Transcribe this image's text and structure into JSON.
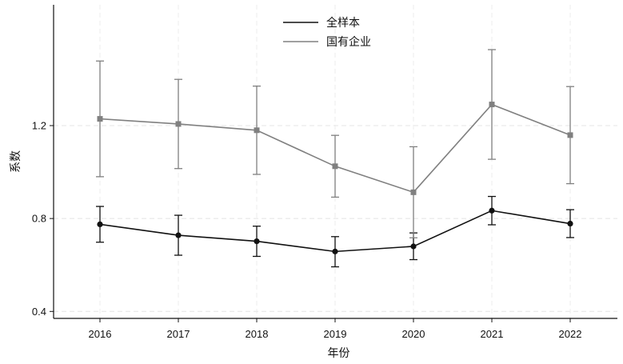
{
  "chart_data": {
    "type": "line",
    "xlabel": "年份",
    "ylabel": "系数",
    "categories": [
      "2016",
      "2017",
      "2018",
      "2019",
      "2020",
      "2021",
      "2022"
    ],
    "ylim": [
      0.37,
      1.72
    ],
    "yticks": [
      0.4,
      0.8,
      1.2
    ],
    "ytick_labels": [
      "0.4",
      "0.8",
      "1.2"
    ],
    "grid": "horizontal dashed",
    "legend_position": "top-center",
    "error_bars": true,
    "series": [
      {
        "name": "全样本",
        "color": "#111111",
        "marker": "circle",
        "values": [
          0.775,
          0.728,
          0.702,
          0.658,
          0.68,
          0.834,
          0.778
        ],
        "lower": [
          0.698,
          0.642,
          0.637,
          0.592,
          0.623,
          0.773,
          0.718
        ],
        "upper": [
          0.852,
          0.814,
          0.767,
          0.722,
          0.738,
          0.895,
          0.838
        ]
      },
      {
        "name": "国有企业",
        "color": "#808080",
        "marker": "square",
        "values": [
          1.229,
          1.207,
          1.18,
          1.025,
          0.913,
          1.291,
          1.159
        ],
        "lower": [
          0.98,
          1.015,
          0.99,
          0.892,
          0.717,
          1.055,
          0.95
        ],
        "upper": [
          1.478,
          1.399,
          1.37,
          1.158,
          1.109,
          1.527,
          1.368
        ]
      }
    ]
  }
}
